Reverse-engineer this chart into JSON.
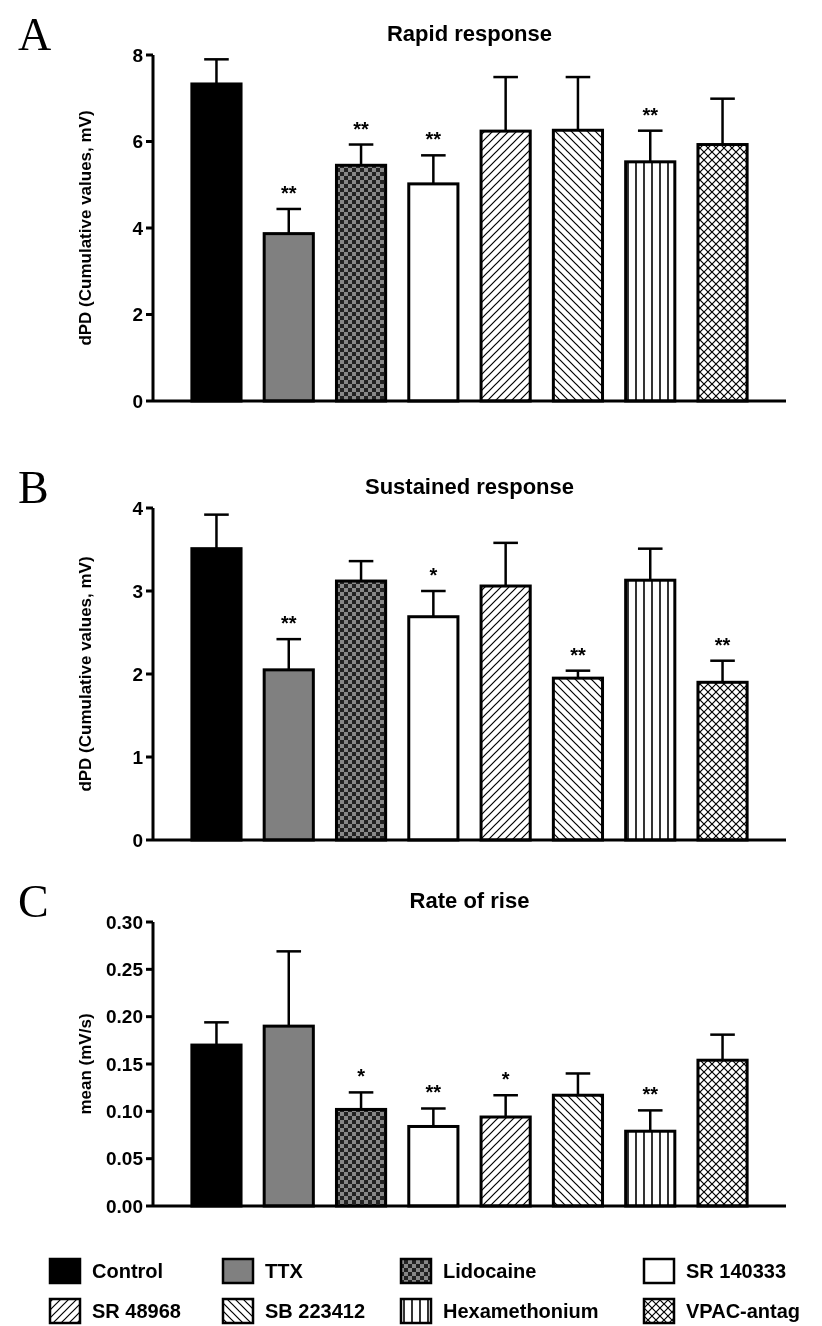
{
  "chart_data": [
    {
      "type": "bar",
      "title": "Rapid response",
      "ylabel": "dPD (Cumulative values, mV)",
      "annotations": [
        "A"
      ],
      "categories": [
        null
      ],
      "ylim": [
        0,
        8
      ],
      "yticks": [
        0,
        2,
        4,
        6,
        8
      ],
      "grid": false,
      "legend": false,
      "series": [
        {
          "color": "#000000",
          "values": [
            7.33
          ],
          "errors": [
            [
              7.33,
              7.9
            ]
          ],
          "value_labels": [
            null
          ]
        },
        {
          "color": "#808080",
          "values": [
            3.87
          ],
          "errors": [
            [
              3.87,
              4.44
            ]
          ],
          "value_labels": [
            "**"
          ]
        },
        {
          "color": "#000000",
          "values": [
            5.45
          ],
          "errors": [
            [
              5.45,
              5.93
            ]
          ],
          "value_labels": [
            "**"
          ]
        },
        {
          "color": "#ffffff",
          "values": [
            5.02
          ],
          "errors": [
            [
              5.02,
              5.68
            ]
          ],
          "value_labels": [
            "**"
          ]
        },
        {
          "color": "#000000",
          "values": [
            6.24
          ],
          "errors": [
            [
              6.24,
              7.49
            ]
          ],
          "value_labels": [
            null
          ]
        },
        {
          "color": "#000000",
          "values": [
            6.26
          ],
          "errors": [
            [
              6.26,
              7.49
            ]
          ],
          "value_labels": [
            null
          ]
        },
        {
          "color": "#000000",
          "values": [
            5.53
          ],
          "errors": [
            [
              5.53,
              6.25
            ]
          ],
          "value_labels": [
            "**"
          ]
        },
        {
          "color": "#000000",
          "values": [
            5.93
          ],
          "errors": [
            [
              5.93,
              6.99
            ]
          ],
          "value_labels": [
            null
          ]
        }
      ]
    },
    {
      "type": "bar",
      "title": "Sustained response",
      "ylabel": "dPD (Cumulative values, mV)",
      "annotations": [
        "B"
      ],
      "categories": [
        null
      ],
      "ylim": [
        0,
        4
      ],
      "yticks": [
        0,
        1,
        2,
        3,
        4
      ],
      "grid": false,
      "legend": false,
      "series": [
        {
          "color": "#000000",
          "values": [
            3.51
          ],
          "errors": [
            [
              3.51,
              3.92
            ]
          ],
          "value_labels": [
            null
          ]
        },
        {
          "color": "#808080",
          "values": [
            2.05
          ],
          "errors": [
            [
              2.05,
              2.42
            ]
          ],
          "value_labels": [
            "**"
          ]
        },
        {
          "color": "#000000",
          "values": [
            3.12
          ],
          "errors": [
            [
              3.12,
              3.36
            ]
          ],
          "value_labels": [
            null
          ]
        },
        {
          "color": "#ffffff",
          "values": [
            2.69
          ],
          "errors": [
            [
              2.69,
              3.0
            ]
          ],
          "value_labels": [
            "*"
          ]
        },
        {
          "color": "#000000",
          "values": [
            3.06
          ],
          "errors": [
            [
              3.06,
              3.58
            ]
          ],
          "value_labels": [
            null
          ]
        },
        {
          "color": "#000000",
          "values": [
            1.95
          ],
          "errors": [
            [
              1.95,
              2.04
            ]
          ],
          "value_labels": [
            "**"
          ]
        },
        {
          "color": "#000000",
          "values": [
            3.13
          ],
          "errors": [
            [
              3.13,
              3.51
            ]
          ],
          "value_labels": [
            null
          ]
        },
        {
          "color": "#000000",
          "values": [
            1.9
          ],
          "errors": [
            [
              1.9,
              2.16
            ]
          ],
          "value_labels": [
            "**"
          ]
        }
      ]
    },
    {
      "type": "bar",
      "title": "Rate of rise",
      "ylabel": "mean (mV/s)",
      "annotations": [
        "C"
      ],
      "categories": [
        null
      ],
      "ylim": [
        0,
        0.3
      ],
      "yticks": [
        {
          "value": 0,
          "label": "0.00"
        },
        {
          "value": 0.05,
          "label": "0.05"
        },
        {
          "value": 0.1,
          "label": "0.10"
        },
        {
          "value": 0.15,
          "label": "0.15"
        },
        {
          "value": 0.2,
          "label": "0.20"
        },
        {
          "value": 0.25,
          "label": "0.25"
        },
        {
          "value": 0.3,
          "label": "0.30"
        }
      ],
      "grid": false,
      "legend": "bottom",
      "series": [
        {
          "name": "Control",
          "color": "#000000",
          "values": [
            0.17
          ],
          "errors": [
            [
              0.17,
              0.194
            ]
          ],
          "value_labels": [
            null
          ]
        },
        {
          "name": "TTX",
          "color": "#808080",
          "values": [
            0.19
          ],
          "errors": [
            [
              0.19,
              0.269
            ]
          ],
          "value_labels": [
            null
          ]
        },
        {
          "name": "Lidocaine",
          "color": "#000000",
          "values": [
            0.102
          ],
          "errors": [
            [
              0.102,
              0.12
            ]
          ],
          "value_labels": [
            "*"
          ]
        },
        {
          "name": "SR 140333",
          "color": "#ffffff",
          "values": [
            0.084
          ],
          "errors": [
            [
              0.084,
              0.103
            ]
          ],
          "value_labels": [
            "**"
          ]
        },
        {
          "name": "SR 48968",
          "color": "#000000",
          "values": [
            0.094
          ],
          "errors": [
            [
              0.094,
              0.117
            ]
          ],
          "value_labels": [
            "*"
          ]
        },
        {
          "name": "SB 223412",
          "color": "#000000",
          "values": [
            0.117
          ],
          "errors": [
            [
              0.117,
              0.14
            ]
          ],
          "value_labels": [
            null
          ]
        },
        {
          "name": "Hexamethonium",
          "color": "#000000",
          "values": [
            0.079
          ],
          "errors": [
            [
              0.079,
              0.101
            ]
          ],
          "value_labels": [
            "**"
          ]
        },
        {
          "name": "VPAC-antag",
          "color": "#000000",
          "values": [
            0.154
          ],
          "errors": [
            [
              0.154,
              0.181
            ]
          ],
          "value_labels": [
            null
          ]
        }
      ]
    }
  ]
}
